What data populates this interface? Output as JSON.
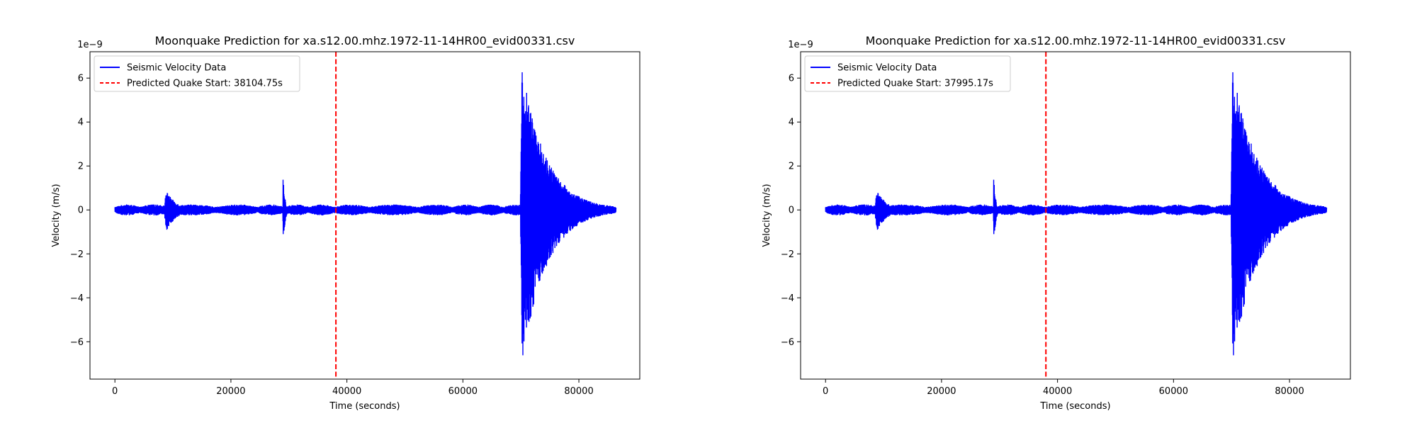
{
  "chart_data": [
    {
      "type": "line",
      "title": "Moonquake Prediction for xa.s12.00.mhz.1972-11-14HR00_evid00331.csv",
      "xlabel": "Time (seconds)",
      "ylabel": "Velocity (m/s)",
      "y_offset_label": "1e−9",
      "xlim": [
        -4300,
        90500
      ],
      "ylim": [
        -7.7,
        7.2
      ],
      "x_ticks": [
        0,
        20000,
        40000,
        60000,
        80000
      ],
      "y_ticks": [
        -6,
        -4,
        -2,
        0,
        2,
        4,
        6
      ],
      "x_tick_labels": [
        "0",
        "20000",
        "40000",
        "60000",
        "80000"
      ],
      "y_tick_labels": [
        "−6",
        "−4",
        "−2",
        "0",
        "2",
        "4",
        "6"
      ],
      "grid": false,
      "legend_position": "top-left",
      "series": [
        {
          "name": "Seismic Velocity Data",
          "kind": "waveform",
          "color": "#0000ff",
          "x_range": [
            0,
            86400
          ],
          "base_amplitude": 0.25,
          "events": [
            {
              "start": 8500,
              "peak_pos": 8800,
              "peak_neg": -1.0,
              "peak": 0.9,
              "decay": 1800
            },
            {
              "start": 28950,
              "peak_pos": 29000,
              "peak_neg": -1.95,
              "peak": 1.65,
              "decay": 300
            },
            {
              "start": 69900,
              "peak_pos": 70200,
              "peak_neg": -7.0,
              "peak": 6.5,
              "decay": 4200
            }
          ]
        },
        {
          "name": "Predicted Quake Start: 38104.75s",
          "kind": "vline",
          "x": 38104.75,
          "color": "#ff0000",
          "style": "dashed"
        }
      ]
    },
    {
      "type": "line",
      "title": "Moonquake Prediction for xa.s12.00.mhz.1972-11-14HR00_evid00331.csv",
      "xlabel": "Time (seconds)",
      "ylabel": "Velocity (m/s)",
      "y_offset_label": "1e−9",
      "xlim": [
        -4300,
        90500
      ],
      "ylim": [
        -7.7,
        7.2
      ],
      "x_ticks": [
        0,
        20000,
        40000,
        60000,
        80000
      ],
      "y_ticks": [
        -6,
        -4,
        -2,
        0,
        2,
        4,
        6
      ],
      "x_tick_labels": [
        "0",
        "20000",
        "40000",
        "60000",
        "80000"
      ],
      "y_tick_labels": [
        "−6",
        "−4",
        "−2",
        "0",
        "2",
        "4",
        "6"
      ],
      "grid": false,
      "legend_position": "top-left",
      "series": [
        {
          "name": "Seismic Velocity Data",
          "kind": "waveform",
          "color": "#0000ff",
          "x_range": [
            0,
            86400
          ],
          "base_amplitude": 0.25,
          "events": [
            {
              "start": 8500,
              "peak_pos": 8800,
              "peak_neg": -1.0,
              "peak": 0.9,
              "decay": 1800
            },
            {
              "start": 28950,
              "peak_pos": 29000,
              "peak_neg": -1.95,
              "peak": 1.65,
              "decay": 300
            },
            {
              "start": 69900,
              "peak_pos": 70200,
              "peak_neg": -7.0,
              "peak": 6.5,
              "decay": 4200
            }
          ]
        },
        {
          "name": "Predicted Quake Start: 37995.17s",
          "kind": "vline",
          "x": 37995.17,
          "color": "#ff0000",
          "style": "dashed"
        }
      ]
    }
  ]
}
